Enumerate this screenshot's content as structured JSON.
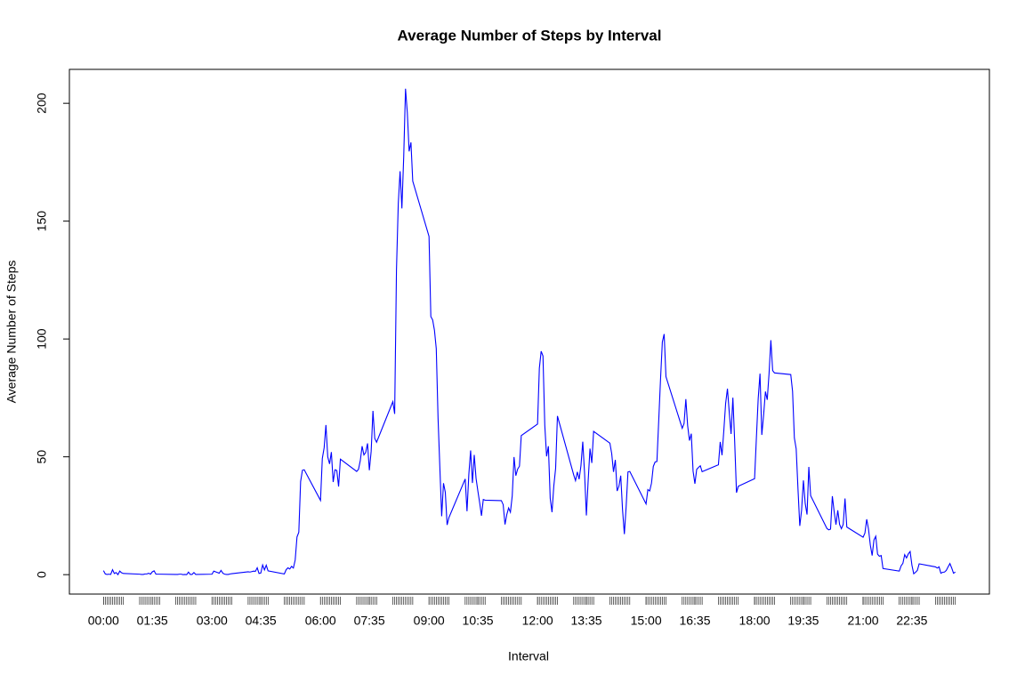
{
  "chart_data": {
    "type": "line",
    "title": "Average Number of Steps by Interval",
    "x_label": "Interval",
    "y_label": "Average Number of Steps",
    "x": [
      0,
      5,
      10,
      15,
      20,
      25,
      30,
      35,
      40,
      45,
      50,
      55,
      100,
      105,
      110,
      115,
      120,
      125,
      130,
      135,
      140,
      145,
      150,
      155,
      200,
      205,
      210,
      215,
      220,
      225,
      230,
      235,
      240,
      245,
      250,
      255,
      300,
      305,
      310,
      315,
      320,
      325,
      330,
      335,
      340,
      345,
      350,
      355,
      400,
      405,
      410,
      415,
      420,
      425,
      430,
      435,
      440,
      445,
      450,
      455,
      500,
      505,
      510,
      515,
      520,
      525,
      530,
      535,
      540,
      545,
      550,
      555,
      600,
      605,
      610,
      615,
      620,
      625,
      630,
      635,
      640,
      645,
      650,
      655,
      700,
      705,
      710,
      715,
      720,
      725,
      730,
      735,
      740,
      745,
      750,
      755,
      800,
      805,
      810,
      815,
      820,
      825,
      830,
      835,
      840,
      845,
      850,
      855,
      900,
      905,
      910,
      915,
      920,
      925,
      930,
      935,
      940,
      945,
      950,
      955,
      1000,
      1005,
      1010,
      1015,
      1020,
      1025,
      1030,
      1035,
      1040,
      1045,
      1050,
      1055,
      1100,
      1105,
      1110,
      1115,
      1120,
      1125,
      1130,
      1135,
      1140,
      1145,
      1150,
      1155,
      1200,
      1205,
      1210,
      1215,
      1220,
      1225,
      1230,
      1235,
      1240,
      1245,
      1250,
      1255,
      1300,
      1305,
      1310,
      1315,
      1320,
      1325,
      1330,
      1335,
      1340,
      1345,
      1350,
      1355,
      1400,
      1405,
      1410,
      1415,
      1420,
      1425,
      1430,
      1435,
      1440,
      1445,
      1450,
      1455,
      1500,
      1505,
      1510,
      1515,
      1520,
      1525,
      1530,
      1535,
      1540,
      1545,
      1550,
      1555,
      1600,
      1605,
      1610,
      1615,
      1620,
      1625,
      1630,
      1635,
      1640,
      1645,
      1650,
      1655,
      1700,
      1705,
      1710,
      1715,
      1720,
      1725,
      1730,
      1735,
      1740,
      1745,
      1750,
      1755,
      1800,
      1805,
      1810,
      1815,
      1820,
      1825,
      1830,
      1835,
      1840,
      1845,
      1850,
      1855,
      1900,
      1905,
      1910,
      1915,
      1920,
      1925,
      1930,
      1935,
      1940,
      1945,
      1950,
      1955,
      2000,
      2005,
      2010,
      2015,
      2020,
      2025,
      2030,
      2035,
      2040,
      2045,
      2050,
      2055,
      2100,
      2105,
      2110,
      2115,
      2120,
      2125,
      2130,
      2135,
      2140,
      2145,
      2150,
      2155,
      2200,
      2205,
      2210,
      2215,
      2220,
      2225,
      2230,
      2235,
      2240,
      2245,
      2250,
      2255,
      2300,
      2305,
      2310,
      2315,
      2320,
      2325,
      2330,
      2335,
      2340,
      2345,
      2350,
      2355
    ],
    "series": [
      {
        "name": "Average Number of Steps",
        "color": "#0000ff",
        "values": [
          1.7,
          0.3,
          0.1,
          0.2,
          0.1,
          2.1,
          0.5,
          0.9,
          0,
          1.5,
          0.8,
          0.5,
          0.2,
          0.1,
          0.1,
          0.3,
          0.3,
          0.6,
          0.2,
          1.2,
          1.6,
          0.2,
          0.2,
          0.2,
          0.1,
          0.1,
          0.2,
          0.2,
          0,
          0.1,
          0,
          1.1,
          0.1,
          0.1,
          0.9,
          0.1,
          0.2,
          1.5,
          1.2,
          0.9,
          0.6,
          1.8,
          0.6,
          0.2,
          0.1,
          0.1,
          0.3,
          0.4,
          1.2,
          1.1,
          1.3,
          1.5,
          1.4,
          2.9,
          0.5,
          0.7,
          4.1,
          2.0,
          4.0,
          1.6,
          0.3,
          2.1,
          2.9,
          2.4,
          3.5,
          2.8,
          6.2,
          16,
          18,
          39.5,
          44.3,
          44.5,
          31.5,
          49.3,
          53.8,
          63.5,
          50,
          47,
          52,
          39.3,
          44.5,
          44.2,
          37.4,
          49.0,
          43.8,
          44.7,
          48.4,
          54.5,
          50.8,
          51.9,
          55.7,
          44.3,
          52.3,
          69.5,
          57.8,
          56.2,
          73.4,
          68.2,
          129.4,
          157.5,
          171.2,
          155.4,
          177.3,
          206.2,
          196,
          179.6,
          183.4,
          167.0,
          143.5,
          109.5,
          108.1,
          103.7,
          95.9,
          66.2,
          45.2,
          24.8,
          38.8,
          35.0,
          21.1,
          24.2,
          40.6,
          26.9,
          42.4,
          52.7,
          38.9,
          50.8,
          40.9,
          35.5,
          30.5,
          25.0,
          31.9,
          31.6,
          31.4,
          29.7,
          21.3,
          25.5,
          28.3,
          26.5,
          33.4,
          49.9,
          42.0,
          44.8,
          46.0,
          59.0,
          63.9,
          87.6,
          94.8,
          92.8,
          63.4,
          50.2,
          54.5,
          32.4,
          26.5,
          37.7,
          45.1,
          67.3,
          42.3,
          39.9,
          43.6,
          40.5,
          46.2,
          56.4,
          43.1,
          25.1,
          40.0,
          53.5,
          47.4,
          60.8,
          55.8,
          51.4,
          43.6,
          48.7,
          35.5,
          37.5,
          42.0,
          27.5,
          17.2,
          29.0,
          43.6,
          43.8,
          30.0,
          36.1,
          35.5,
          38.8,
          45.9,
          47.8,
          48.0,
          65.3,
          82.9,
          98.7,
          102.1,
          84.0,
          62.1,
          64.1,
          74.5,
          63.2,
          56.9,
          59.8,
          43.9,
          38.6,
          44.7,
          45.5,
          46.2,
          43.7,
          46.6,
          56.3,
          50.7,
          61.2,
          72.7,
          78.9,
          68.9,
          59.7,
          75.1,
          56.5,
          34.8,
          37.5,
          40.7,
          58.0,
          74.7,
          85.3,
          59.3,
          67.8,
          77.7,
          74.2,
          85.3,
          99.5,
          86.6,
          85.6,
          84.9,
          77.8,
          58.0,
          53.4,
          36.3,
          20.7,
          27.4,
          40.0,
          30.2,
          25.5,
          45.7,
          33.5,
          19.6,
          19.0,
          19.3,
          33.3,
          26.8,
          21.2,
          27.3,
          21.3,
          19.5,
          21.3,
          32.3,
          20.2,
          15.9,
          17.6,
          23.5,
          19.3,
          12.5,
          8.1,
          14.7,
          16.3,
          8.7,
          7.8,
          8.1,
          2.6,
          1.5,
          3.7,
          4.8,
          8.5,
          7.1,
          8.8,
          9.8,
          4.0,
          0.4,
          1.0,
          1.8,
          4.6,
          3.3,
          2.8,
          3.3,
          0.6,
          1.0,
          1.1,
          1.8,
          3.3,
          4.7,
          2.8,
          0.6,
          1.1
        ]
      }
    ],
    "xlim": [
      -94.2,
      2449.2
    ],
    "ylim": [
      -8.24,
      214.4
    ],
    "xticks": [
      {
        "value": 0,
        "label": "00:00"
      },
      {
        "value": 135,
        "label": "01:35"
      },
      {
        "value": 300,
        "label": "03:00"
      },
      {
        "value": 435,
        "label": "04:35"
      },
      {
        "value": 600,
        "label": "06:00"
      },
      {
        "value": 735,
        "label": "07:35"
      },
      {
        "value": 900,
        "label": "09:00"
      },
      {
        "value": 1035,
        "label": "10:35"
      },
      {
        "value": 1200,
        "label": "12:00"
      },
      {
        "value": 1335,
        "label": "13:35"
      },
      {
        "value": 1500,
        "label": "15:00"
      },
      {
        "value": 1635,
        "label": "16:35"
      },
      {
        "value": 1800,
        "label": "18:00"
      },
      {
        "value": 1935,
        "label": "19:35"
      },
      {
        "value": 2100,
        "label": "21:00"
      },
      {
        "value": 2235,
        "label": "22:35"
      }
    ],
    "yticks": [
      0,
      50,
      100,
      150,
      200
    ]
  }
}
